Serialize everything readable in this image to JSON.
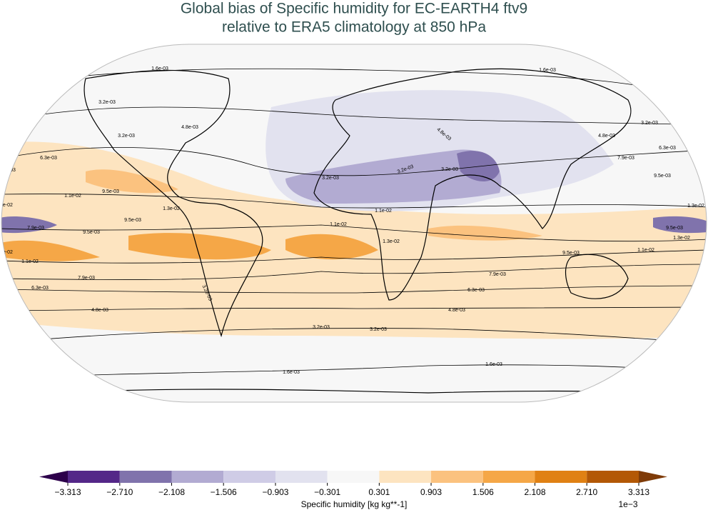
{
  "title": [
    "Global bias of Specific humidity for EC-EARTH4 ftv9",
    "relative to ERA5 climatology at 850 hPa"
  ],
  "contour_labels": [
    "1.6e-03",
    "1.6e-03",
    "3.2e-03",
    "3.2e-03",
    "4.8e-03",
    "6.3e-03",
    "7.9e-03",
    "1.1e-02",
    "9.5e-03",
    "1.3e-02",
    "9.5e-03",
    "7.9e-03",
    "9.5e-03",
    "1.1e-02",
    "7.9e-03",
    "6.3e-03",
    "4.8e-03",
    "3.2e-03",
    "3.2e-03",
    "3.2e-03",
    "1.6e-03",
    "1.6e-03",
    "3.2e-03",
    "3.2e-03",
    "3.2e-03",
    "1.1e-02",
    "1.1e-02",
    "1.3e-02",
    "4.8e-03",
    "7.9e-03",
    "6.3e-03",
    "4.8e-03",
    "9.5e-03",
    "1.1e-02",
    "1.3e-02",
    "9.5e-03",
    "1.3e-02",
    "9.5e-03",
    "7.9e-03",
    "6.3e-03",
    "4.8e-03",
    "3.2e-03",
    "1.3e-02",
    "1.3e-02"
  ],
  "colorbar": {
    "label": "Specific humidity [kg kg**-1]",
    "multiplier": "1e−3",
    "ticks": [
      {
        "value": -3.313,
        "label": "−3.313"
      },
      {
        "value": -2.71,
        "label": "−2.710"
      },
      {
        "value": -2.108,
        "label": "−2.108"
      },
      {
        "value": -1.506,
        "label": "−1.506"
      },
      {
        "value": -0.903,
        "label": "−0.903"
      },
      {
        "value": -0.301,
        "label": "−0.301"
      },
      0.301,
      0.903,
      1.506,
      2.108,
      {
        "value": 2.71,
        "label": "2.710"
      },
      3.313
    ],
    "colors": [
      "#2d004b",
      "#542788",
      "#8073ac",
      "#b2abd2",
      "#cfcce6",
      "#e2e2ef",
      "#f7f7f7",
      "#fde4c0",
      "#fbc27f",
      "#f5a747",
      "#e08114",
      "#b35806",
      "#7f3b08"
    ]
  }
}
